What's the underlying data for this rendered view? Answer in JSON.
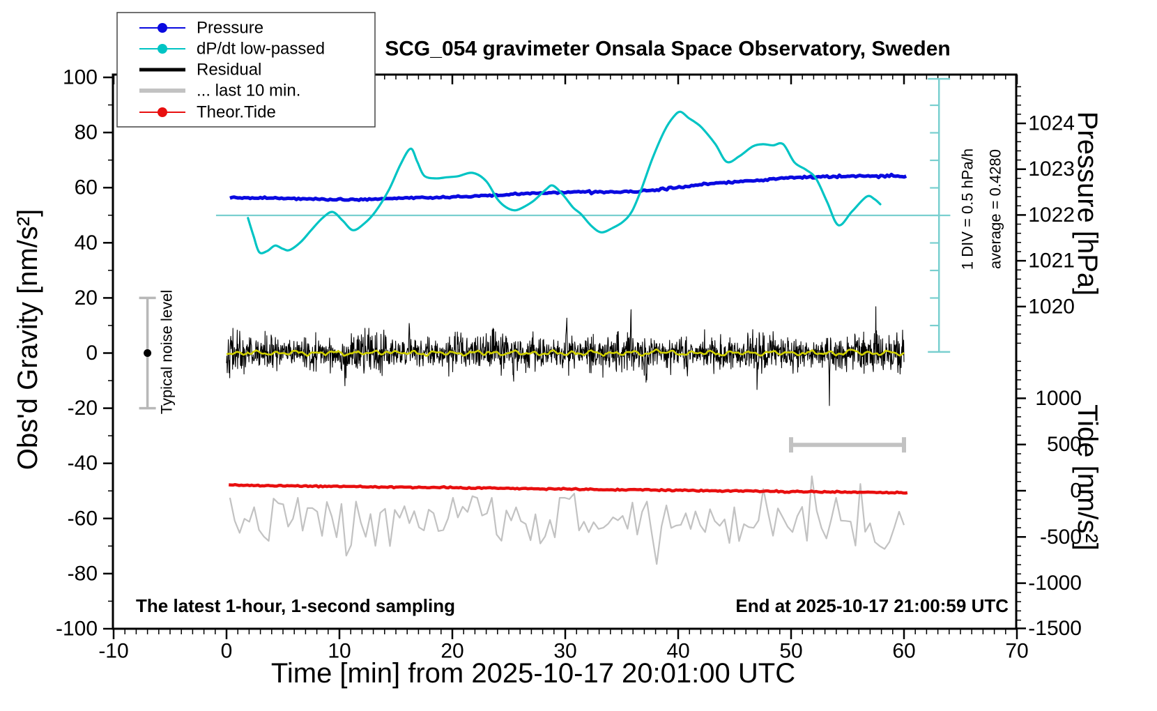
{
  "title": "SCG_054 gravimeter Onsala Space Observatory, Sweden",
  "footer": {
    "left": "The latest 1-hour, 1-second sampling",
    "right": "End at 2025-10-17 21:00:59 UTC"
  },
  "annotations": {
    "div_scale": "1 DIV = 0.5 hPa/h",
    "average": "average = 0.4280",
    "noise_level": "Typical noise level"
  },
  "legend": {
    "items": [
      {
        "label": "Pressure",
        "color": "#0a0ae0",
        "line_width": 2,
        "dot": true
      },
      {
        "label": "dP/dt low-passed",
        "color": "#00c4c4",
        "line_width": 2,
        "dot": true
      },
      {
        "label": "Residual",
        "color": "#000000",
        "line_width": 5,
        "dot": false
      },
      {
        "label": "... last 10 min.",
        "color": "#c2c2c2",
        "line_width": 6,
        "dot": false
      },
      {
        "label": "Theor.Tide",
        "color": "#e80f0f",
        "line_width": 2,
        "dot": true
      }
    ]
  },
  "axes": {
    "x": {
      "title": "Time [min] from 2025-10-17 20:01:00 UTC",
      "min": -10,
      "max": 70,
      "major": [
        -10,
        0,
        10,
        20,
        30,
        40,
        50,
        60,
        70
      ],
      "major_labels": [
        "-10",
        "0",
        "10",
        "20",
        "30",
        "40",
        "50",
        "60",
        "70"
      ],
      "minor_step": 1
    },
    "y_left": {
      "title": "Obs'd Gravity [nm/s²]",
      "min": -100,
      "max": 100,
      "major": [
        100,
        80,
        60,
        40,
        20,
        0,
        -20,
        -40,
        -60,
        -80,
        -100
      ],
      "major_labels": [
        "100",
        "80",
        "60",
        "40",
        "20",
        "0",
        "-20",
        "-40",
        "-60",
        "-80",
        "-100"
      ],
      "minor_step": 10
    },
    "y_pressure": {
      "title": "Pressure [hPa]",
      "major": [
        1024,
        1023,
        1022,
        1021,
        1020
      ],
      "major_labels": [
        "1024",
        "1023",
        "1022",
        "1021",
        "1020"
      ],
      "minor_step": 0.2
    },
    "y_tide": {
      "title": "Tide [nm/s²]",
      "major": [
        1000,
        500,
        0,
        -500,
        -1000,
        -1500
      ],
      "major_labels": [
        "1000",
        "500",
        "0",
        "-500",
        "-1000",
        "-1500"
      ],
      "minor_step": 100
    }
  },
  "chart_data": {
    "type": "line",
    "x_units": "minutes",
    "grid": false,
    "series": [
      {
        "name": "Pressure",
        "axis": "pressure",
        "units": "hPa",
        "color": "#0a0ae0",
        "points": [
          [
            0.3,
            1022.37
          ],
          [
            3,
            1022.38
          ],
          [
            6,
            1022.36
          ],
          [
            9,
            1022.34
          ],
          [
            11,
            1022.33
          ],
          [
            13,
            1022.35
          ],
          [
            16,
            1022.37
          ],
          [
            19,
            1022.38
          ],
          [
            22,
            1022.41
          ],
          [
            25,
            1022.45
          ],
          [
            28,
            1022.48
          ],
          [
            31,
            1022.5
          ],
          [
            34,
            1022.5
          ],
          [
            36.5,
            1022.51
          ],
          [
            39,
            1022.58
          ],
          [
            41,
            1022.63
          ],
          [
            43,
            1022.68
          ],
          [
            45,
            1022.72
          ],
          [
            47,
            1022.76
          ],
          [
            49,
            1022.79
          ],
          [
            51,
            1022.82
          ],
          [
            53,
            1022.84
          ],
          [
            55,
            1022.84
          ],
          [
            57,
            1022.85
          ],
          [
            60.2,
            1022.85
          ]
        ]
      },
      {
        "name": "dP/dt low-passed",
        "axis": "dpdt",
        "units": "hPa/h",
        "color": "#00c4c4",
        "average": 0.428,
        "div_value": 0.5,
        "scale_bar_range": [
          -2.05,
          2.91
        ],
        "points": [
          [
            1.9,
            0.38
          ],
          [
            2.4,
            0.05
          ],
          [
            2.9,
            -0.24
          ],
          [
            3.6,
            -0.22
          ],
          [
            4.3,
            -0.12
          ],
          [
            5,
            -0.18
          ],
          [
            5.6,
            -0.2
          ],
          [
            6.6,
            -0.05
          ],
          [
            7.5,
            0.16
          ],
          [
            8.5,
            0.38
          ],
          [
            9.4,
            0.49
          ],
          [
            10.3,
            0.33
          ],
          [
            11.2,
            0.16
          ],
          [
            12.2,
            0.28
          ],
          [
            13.2,
            0.5
          ],
          [
            14.4,
            0.9
          ],
          [
            15.4,
            1.35
          ],
          [
            16.3,
            1.64
          ],
          [
            16.9,
            1.4
          ],
          [
            17.5,
            1.15
          ],
          [
            18.5,
            1.1
          ],
          [
            19.5,
            1.12
          ],
          [
            20.5,
            1.14
          ],
          [
            21.8,
            1.2
          ],
          [
            23,
            1.05
          ],
          [
            24,
            0.72
          ],
          [
            24.8,
            0.57
          ],
          [
            25.6,
            0.52
          ],
          [
            26.5,
            0.6
          ],
          [
            27.3,
            0.71
          ],
          [
            28.3,
            0.9
          ],
          [
            28.9,
            0.97
          ],
          [
            29.8,
            0.8
          ],
          [
            30.7,
            0.57
          ],
          [
            31.4,
            0.45
          ],
          [
            32.3,
            0.24
          ],
          [
            33.2,
            0.12
          ],
          [
            34.2,
            0.2
          ],
          [
            35.1,
            0.31
          ],
          [
            35.9,
            0.5
          ],
          [
            36.7,
            0.88
          ],
          [
            37.7,
            1.45
          ],
          [
            38.8,
            1.97
          ],
          [
            39.6,
            2.22
          ],
          [
            40.2,
            2.31
          ],
          [
            40.9,
            2.2
          ],
          [
            41.5,
            2.12
          ],
          [
            42.1,
            2.02
          ],
          [
            43.3,
            1.72
          ],
          [
            44.3,
            1.4
          ],
          [
            45.4,
            1.5
          ],
          [
            46.6,
            1.68
          ],
          [
            47.5,
            1.72
          ],
          [
            48.4,
            1.7
          ],
          [
            49.3,
            1.72
          ],
          [
            50.3,
            1.39
          ],
          [
            51.3,
            1.26
          ],
          [
            52.2,
            1.1
          ],
          [
            53.2,
            0.67
          ],
          [
            54.2,
            0.25
          ],
          [
            55.4,
            0.5
          ],
          [
            56.7,
            0.77
          ],
          [
            57.4,
            0.72
          ],
          [
            57.9,
            0.63
          ]
        ]
      },
      {
        "name": "Residual",
        "axis": "gravity",
        "units": "nm/s²",
        "color": "#000000",
        "t_range": [
          0,
          60
        ],
        "baseline": 0,
        "noise": {
          "seed": 42,
          "n": 1900,
          "sigma": 3.1,
          "clip": 9,
          "spike_width": 0.07,
          "spikes": [
            [
              10.5,
              -11
            ],
            [
              16.2,
              12
            ],
            [
              25.4,
              -11
            ],
            [
              30.1,
              12
            ],
            [
              35.8,
              19
            ],
            [
              37.2,
              -13
            ],
            [
              40.8,
              -12
            ],
            [
              47,
              -12
            ],
            [
              53.4,
              -14
            ],
            [
              57.5,
              12
            ]
          ]
        }
      },
      {
        "name": "Residual low-passed",
        "axis": "gravity",
        "units": "nm/s²",
        "color": "#d0d000",
        "t_range": [
          0,
          60
        ],
        "baseline": 0,
        "smooth_noise": {
          "seed": 3,
          "n": 480,
          "amps": [
            0.5,
            0.3,
            0.25
          ],
          "periods": [
            1.75,
            0.82,
            3.3
          ],
          "jitter": 0.12,
          "bumps": [
            [
              14.2,
              0.9,
              0.35
            ],
            [
              38.2,
              1.4,
              0.3
            ],
            [
              55.6,
              1.0,
              0.3
            ]
          ]
        }
      },
      {
        "name": "... last 10 min.",
        "axis": "gravity",
        "units": "nm/s²",
        "color": "#c2c2c2",
        "t_range": [
          0.3,
          60
        ],
        "baseline": -60.5,
        "noise": {
          "seed": 7,
          "n": 140,
          "sigma": 5.0,
          "clip_lo": -9.5,
          "clip_hi": 8,
          "spike_width": 0.5,
          "spikes": [
            [
              10.7,
              -14
            ],
            [
              13.1,
              -16
            ],
            [
              21.5,
              10
            ],
            [
              30.9,
              11
            ],
            [
              38.3,
              -15
            ],
            [
              44.6,
              -13
            ],
            [
              47.6,
              16
            ],
            [
              51.9,
              19
            ],
            [
              53,
              -13
            ],
            [
              56.2,
              14
            ],
            [
              58.6,
              -12
            ]
          ]
        }
      },
      {
        "name": "Theor.Tide",
        "axis": "tide",
        "units": "nm/s²",
        "color": "#e80f0f",
        "points": [
          [
            0.2,
            60
          ],
          [
            10,
            46
          ],
          [
            20,
            33
          ],
          [
            30,
            19
          ],
          [
            40,
            5
          ],
          [
            50,
            -9
          ],
          [
            60.3,
            -22
          ]
        ]
      }
    ],
    "markers": {
      "noise_level_bar": {
        "axis": "gravity",
        "t": -7,
        "center": 0,
        "range": [
          -20,
          20
        ],
        "color": "#b8b8b8"
      },
      "ten_min_bar": {
        "axis": "gravity",
        "t_start": 50,
        "t_end": 60,
        "value": -33.3,
        "color": "#c2c2c2"
      },
      "dpdt_scale_bar": {
        "axis": "dpdt",
        "t": 63.1,
        "average": 0.428,
        "half_range": 2.48,
        "tick_step": 0.5,
        "color": "#79cfcf"
      },
      "dpdt_average_line": {
        "axis": "dpdt",
        "value": 0.428,
        "t_start": -0.93,
        "t_end": 64.1,
        "color": "#79cfcf"
      }
    },
    "axis_ranges": {
      "x_min": -10,
      "x_max": 70,
      "gravity": [
        -100,
        100
      ],
      "pressure_ticks": [
        1020,
        1024
      ],
      "tide_ticks": [
        -1500,
        1000
      ]
    }
  }
}
